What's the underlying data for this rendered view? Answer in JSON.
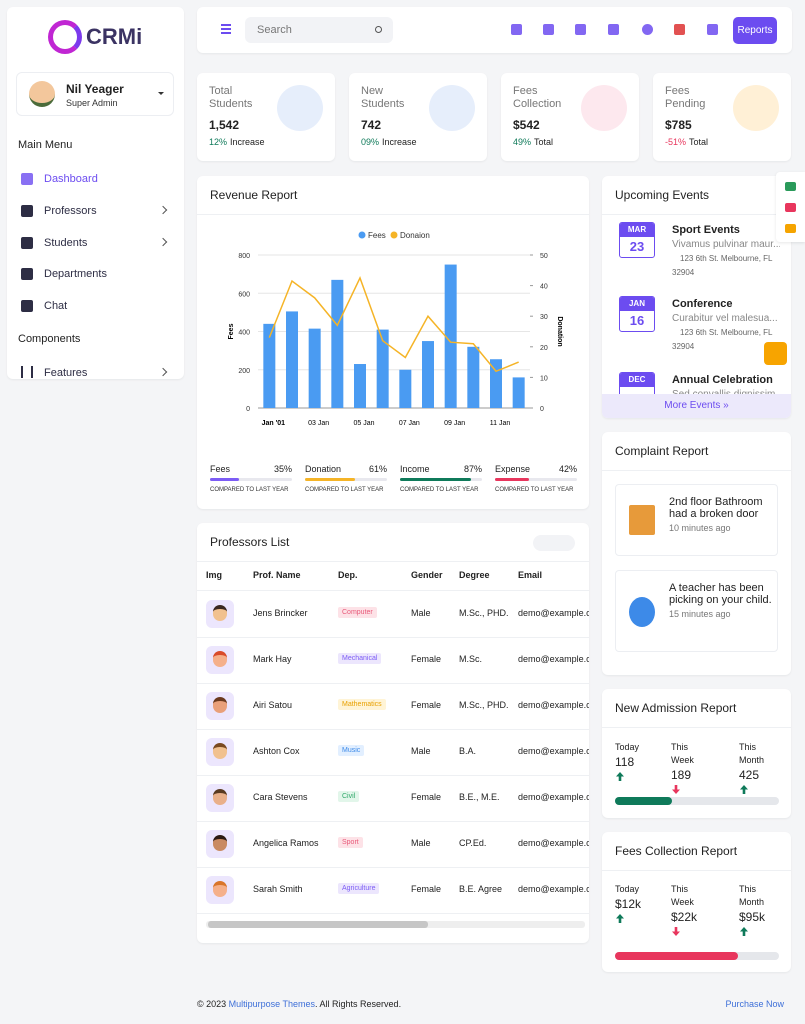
{
  "sidebar": {
    "logo": "CRMi",
    "user": {
      "name": "Nil Yeager",
      "role": "Super Admin"
    },
    "main_menu_title": "Main Menu",
    "main_menu": [
      "Dashboard",
      "Professors",
      "Students",
      "Departments",
      "Chat"
    ],
    "components_title": "Components",
    "components": [
      "Features"
    ]
  },
  "header": {
    "search_placeholder": "Search",
    "button": "Reports"
  },
  "stats": [
    {
      "title": "Total Students",
      "value": "1,542",
      "change": "12%",
      "note": "Increase"
    },
    {
      "title": "New Students",
      "value": "742",
      "change": "09%",
      "note": "Increase"
    },
    {
      "title": "Fees Collection",
      "value": "$542",
      "change": "49%",
      "note": "Total"
    },
    {
      "title": "Fees Pending",
      "value": "$785",
      "change": "-51%",
      "note": "Total"
    }
  ],
  "chart_data": {
    "type": "bar",
    "title": "Revenue Report",
    "ylabel": "Fees",
    "y2label": "Donation",
    "categories": [
      "Jan '01",
      null,
      "03 Jan",
      null,
      "05 Jan",
      null,
      "07 Jan",
      null,
      "09 Jan",
      null,
      "11 Jan",
      null
    ],
    "series": [
      {
        "name": "Fees",
        "type": "bar",
        "color": "#4a9bf2",
        "values": [
          440,
          505,
          415,
          670,
          230,
          410,
          200,
          350,
          750,
          320,
          255,
          160
        ]
      },
      {
        "name": "Donaion",
        "type": "line",
        "axis": "y2",
        "color": "#f5b427",
        "values": [
          23,
          41.5,
          36,
          27,
          42.5,
          22,
          16.5,
          30,
          21.5,
          21,
          12,
          15
        ]
      }
    ],
    "ylim": [
      0,
      800
    ],
    "yticks": [
      0,
      200,
      400,
      600,
      800
    ],
    "y2lim": [
      0,
      50
    ],
    "y2ticks": [
      0,
      10,
      20,
      30,
      40,
      50
    ],
    "grid": true
  },
  "revenue_summary": [
    {
      "label": "Fees",
      "value": 35,
      "value_label": "35%",
      "note": "COMPARED TO LAST YEAR",
      "color": "#7c5cf5"
    },
    {
      "label": "Donation",
      "value": 61,
      "value_label": "61%",
      "note": "COMPARED TO LAST YEAR",
      "color": "#f5b427"
    },
    {
      "label": "Income",
      "value": 87,
      "value_label": "87%",
      "note": "COMPARED TO LAST YEAR",
      "color": "#0f7a5a"
    },
    {
      "label": "Expense",
      "value": 42,
      "value_label": "42%",
      "note": "COMPARED TO LAST YEAR",
      "color": "#e8365d"
    }
  ],
  "professors": {
    "title": "Professors List",
    "columns": [
      "Img",
      "Prof. Name",
      "Dep.",
      "Gender",
      "Degree",
      "Email"
    ],
    "rows": [
      [
        "Jens Brincker",
        "Computer",
        "Male",
        "M.Sc., PHD.",
        "demo@example.com"
      ],
      [
        "Mark Hay",
        "Mechanical",
        "Female",
        "M.Sc.",
        "demo@example.com"
      ],
      [
        "Airi Satou",
        "Mathematics",
        "Female",
        "M.Sc., PHD.",
        "demo@example.com"
      ],
      [
        "Ashton Cox",
        "Music",
        "Male",
        "B.A.",
        "demo@example.com"
      ],
      [
        "Cara Stevens",
        "Civil",
        "Female",
        "B.E., M.E.",
        "demo@example.com"
      ],
      [
        "Angelica Ramos",
        "Sport",
        "Male",
        "CP.Ed.",
        "demo@example.com"
      ],
      [
        "Sarah Smith",
        "Agriculture",
        "Female",
        "B.E. Agree",
        "demo@example.com"
      ]
    ]
  },
  "events": {
    "title": "Upcoming Events",
    "items": [
      {
        "month": "MAR",
        "day": "23",
        "title": "Sport Events",
        "desc": "Vivamus pulvinar maur...",
        "address": "123 6th St. Melbourne, FL 32904"
      },
      {
        "month": "JAN",
        "day": "16",
        "title": "Conference",
        "desc": "Curabitur vel malesua...",
        "address": "123 6th St. Melbourne, FL 32904"
      },
      {
        "month": "DEC",
        "title": "Annual Celebration",
        "desc": "Sed convallis dignissim..."
      }
    ],
    "more": "More Events »"
  },
  "complaints": {
    "title": "Complaint Report",
    "items": [
      {
        "text": "2nd floor Bathroom had a broken door",
        "time": "10 minutes ago"
      },
      {
        "text": "A teacher has been picking on your child.",
        "time": "15 minutes ago"
      }
    ]
  },
  "admission": {
    "title": "New Admission Report",
    "items": [
      {
        "label": "Today",
        "value": "118",
        "trend": "up"
      },
      {
        "label": "This Week",
        "value": "189",
        "trend": "down"
      },
      {
        "label": "This Month",
        "value": "425",
        "trend": "up"
      }
    ]
  },
  "fees_report": {
    "title": "Fees Collection Report",
    "items": [
      {
        "label": "Today",
        "value": "$12k",
        "trend": "up"
      },
      {
        "label": "This Week",
        "value": "$22k",
        "trend": "down"
      },
      {
        "label": "This Month",
        "value": "$95k",
        "trend": "up"
      }
    ]
  },
  "footer": {
    "prefix": "© 2023 ",
    "link": "Multipurpose Themes",
    "suffix": ". All Rights Reserved.",
    "purchase": "Purchase Now"
  }
}
